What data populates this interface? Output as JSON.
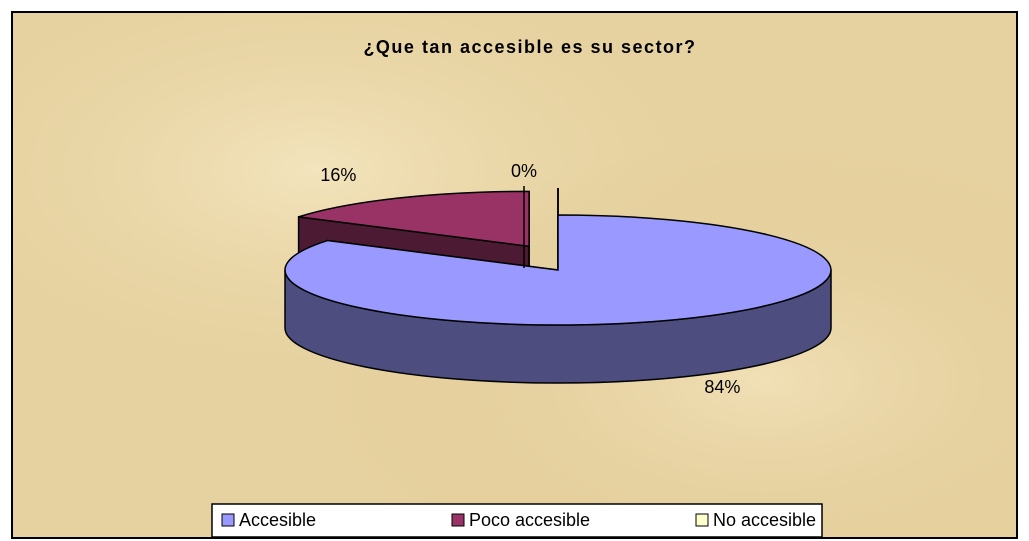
{
  "chart_data": {
    "type": "pie3d",
    "title": "¿Que tan accesible es su sector?",
    "categories": [
      "Accesible",
      "Poco accesible",
      "No accesible"
    ],
    "values": [
      84,
      16,
      0
    ],
    "value_labels": [
      "84%",
      "16%",
      "0%"
    ],
    "colors": [
      "#9999ff",
      "#993366",
      "#ffffcc"
    ],
    "legend": "bottom"
  }
}
